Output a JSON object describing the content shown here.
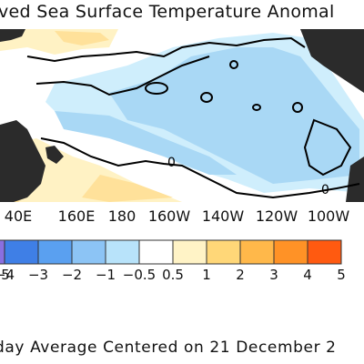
{
  "title": "ved Sea Surface Temperature Anomal",
  "map": {
    "longitude_labels": [
      "40E",
      "160E",
      "180",
      "160W",
      "140W",
      "120W",
      "100W"
    ],
    "contour_labels": [
      "0",
      "0"
    ],
    "colors": {
      "land": "#2b2b2b",
      "ocean_neutral": "#ffffff",
      "light_blue": "#a9d8f5",
      "pale_blue": "#cfeefc",
      "pale_yellow": "#fff2c4",
      "yellow": "#ffe19a"
    }
  },
  "colorbar": {
    "colors": [
      "#8a6fe0",
      "#3f7fe6",
      "#5aa0f0",
      "#8cc4f5",
      "#b8e3fa",
      "#ffffff",
      "#fff3c6",
      "#ffd778",
      "#ffb84a",
      "#ff9226",
      "#ff5a10"
    ],
    "labels": [
      "5",
      "−4",
      "−3",
      "−2",
      "−1",
      "−0.5",
      "0.5",
      "1",
      "2",
      "3",
      "4",
      "5"
    ]
  },
  "footer": "day Average Centered on 21 December 2"
}
